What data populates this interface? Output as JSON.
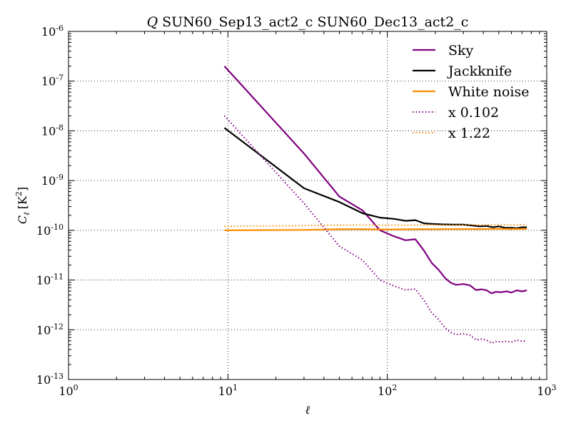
{
  "chart_data": {
    "type": "line",
    "title_symbol": "Q",
    "title": "SUN60_Sep13_act2_c SUN60_Dec13_act2_c",
    "xlabel": "ℓ",
    "ylabel_main": "C",
    "ylabel_sub": "ℓ",
    "ylabel_unit": "[K",
    "ylabel_unit_exp": "2",
    "ylabel_unit_close": "]",
    "xscale": "log",
    "yscale": "log",
    "xlim": [
      1,
      1000
    ],
    "ylim": [
      1e-13,
      1e-06
    ],
    "grid": true,
    "legend_position": "top-right",
    "x_ticks": [
      {
        "value": 1,
        "base": "10",
        "exp": "0"
      },
      {
        "value": 10,
        "base": "10",
        "exp": "1"
      },
      {
        "value": 100,
        "base": "10",
        "exp": "2"
      },
      {
        "value": 1000,
        "base": "10",
        "exp": "3"
      }
    ],
    "y_ticks": [
      {
        "value": 1e-13,
        "base": "10",
        "exp": "-13"
      },
      {
        "value": 1e-12,
        "base": "10",
        "exp": "-12"
      },
      {
        "value": 1e-11,
        "base": "10",
        "exp": "-11"
      },
      {
        "value": 1e-10,
        "base": "10",
        "exp": "-10"
      },
      {
        "value": 1e-09,
        "base": "10",
        "exp": "-9"
      },
      {
        "value": 1e-08,
        "base": "10",
        "exp": "-8"
      },
      {
        "value": 1e-07,
        "base": "10",
        "exp": "-7"
      },
      {
        "value": 1e-06,
        "base": "10",
        "exp": "-6"
      }
    ],
    "series": [
      {
        "name": "Sky",
        "color": "#800080",
        "style": "solid",
        "x": [
          9.5,
          30,
          50,
          70,
          90,
          110,
          130,
          150,
          170,
          190,
          210,
          230,
          250,
          270,
          300,
          330,
          360,
          390,
          420,
          450,
          480,
          520,
          560,
          600,
          650,
          700,
          750
        ],
        "y": [
          2e-07,
          3.5e-09,
          4.8e-10,
          2.5e-10,
          1e-10,
          7.6e-11,
          6.3e-11,
          6.6e-11,
          3.9e-11,
          2.2e-11,
          1.6e-11,
          1.1e-11,
          8.8e-12,
          8e-12,
          8.3e-12,
          7.8e-12,
          6.3e-12,
          6.5e-12,
          6.2e-12,
          5.4e-12,
          5.8e-12,
          5.7e-12,
          5.9e-12,
          5.6e-12,
          6.2e-12,
          5.9e-12,
          6.2e-12
        ]
      },
      {
        "name": "Jackknife",
        "color": "#000000",
        "style": "solid",
        "x": [
          9.5,
          30,
          50,
          70,
          90,
          110,
          130,
          150,
          170,
          190,
          220,
          260,
          300,
          340,
          380,
          420,
          460,
          500,
          550,
          600,
          650,
          700,
          750
        ],
        "y": [
          1.15e-08,
          7e-10,
          3.7e-10,
          2.2e-10,
          1.8e-10,
          1.7e-10,
          1.55e-10,
          1.6e-10,
          1.38e-10,
          1.35e-10,
          1.32e-10,
          1.3e-10,
          1.3e-10,
          1.25e-10,
          1.2e-10,
          1.22e-10,
          1.15e-10,
          1.2e-10,
          1.12e-10,
          1.12e-10,
          1.1e-10,
          1.15e-10,
          1.15e-10
        ]
      },
      {
        "name": "White noise",
        "color": "#ff8c00",
        "style": "solid",
        "x": [
          9.5,
          30,
          50,
          70,
          100,
          150,
          200,
          300,
          400,
          500,
          600,
          750
        ],
        "y": [
          1e-10,
          1.02e-10,
          1.05e-10,
          1.05e-10,
          1.04e-10,
          1.05e-10,
          1.05e-10,
          1.06e-10,
          1.06e-10,
          1.07e-10,
          1.06e-10,
          1.07e-10
        ]
      },
      {
        "name": "x 0.102",
        "color": "#800080",
        "style": "dotted",
        "x": [
          9.5,
          30,
          50,
          70,
          90,
          110,
          130,
          150,
          170,
          190,
          210,
          230,
          250,
          270,
          300,
          330,
          360,
          390,
          420,
          450,
          480,
          520,
          560,
          600,
          650,
          700,
          750
        ],
        "y": [
          2e-08,
          3.5e-10,
          4.8e-11,
          2.5e-11,
          1e-11,
          7.6e-12,
          6.3e-12,
          6.6e-12,
          3.9e-12,
          2.2e-12,
          1.6e-12,
          1.1e-12,
          8.8e-13,
          8e-13,
          8.3e-13,
          7.8e-13,
          6.3e-13,
          6.5e-13,
          6.2e-13,
          5.4e-13,
          5.8e-13,
          5.7e-13,
          5.9e-13,
          5.6e-13,
          6.2e-13,
          5.9e-13,
          6e-13
        ]
      },
      {
        "name": "x 1.22",
        "color": "#ff8c00",
        "style": "dotted",
        "x": [
          9.5,
          30,
          50,
          70,
          100,
          150,
          200,
          300,
          400,
          500,
          600,
          750
        ],
        "y": [
          1.2e-10,
          1.24e-10,
          1.28e-10,
          1.28e-10,
          1.27e-10,
          1.28e-10,
          1.28e-10,
          1.29e-10,
          1.29e-10,
          1.3e-10,
          1.29e-10,
          1.3e-10
        ]
      }
    ]
  }
}
